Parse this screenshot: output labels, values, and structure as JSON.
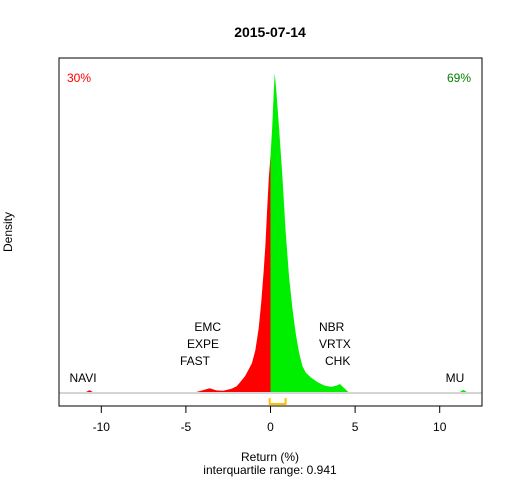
{
  "chart_data": {
    "type": "area",
    "title": "2015-07-14",
    "xlabel": "Return (%)",
    "ylabel": "Density",
    "subtitle": "interquartile range: 0.941",
    "xlim": [
      -12.5,
      12.5
    ],
    "ylim": [
      0,
      1.0
    ],
    "x_ticks": [
      -10,
      -5,
      0,
      5,
      10
    ],
    "tick_labels": [
      "-10",
      "-5",
      "0",
      "5",
      "10"
    ],
    "series": [
      {
        "color": "#ff0000",
        "points": [
          [
            -10.9,
            0.0
          ],
          [
            -10.7,
            0.006
          ],
          [
            -10.5,
            0.0
          ],
          [
            -4.4,
            0.0
          ],
          [
            -4.1,
            0.004
          ],
          [
            -3.6,
            0.012
          ],
          [
            -3.2,
            0.005
          ],
          [
            -2.8,
            0.004
          ],
          [
            -2.3,
            0.01
          ],
          [
            -2.0,
            0.018
          ],
          [
            -1.8,
            0.03
          ],
          [
            -1.5,
            0.05
          ],
          [
            -1.3,
            0.07
          ],
          [
            -1.1,
            0.09
          ],
          [
            -0.9,
            0.13
          ],
          [
            -0.7,
            0.2
          ],
          [
            -0.55,
            0.28
          ],
          [
            -0.4,
            0.38
          ],
          [
            -0.3,
            0.46
          ],
          [
            -0.2,
            0.57
          ],
          [
            -0.1,
            0.67
          ],
          [
            0.0,
            0.74
          ]
        ]
      },
      {
        "color": "#00ee00",
        "points": [
          [
            0.0,
            0.74
          ],
          [
            0.1,
            0.83
          ],
          [
            0.2,
            0.95
          ],
          [
            0.25,
            1.0
          ],
          [
            0.35,
            0.94
          ],
          [
            0.5,
            0.83
          ],
          [
            0.7,
            0.68
          ],
          [
            0.9,
            0.5
          ],
          [
            1.1,
            0.36
          ],
          [
            1.3,
            0.26
          ],
          [
            1.5,
            0.18
          ],
          [
            1.7,
            0.12
          ],
          [
            1.9,
            0.08
          ],
          [
            2.1,
            0.06
          ],
          [
            2.4,
            0.045
          ],
          [
            2.8,
            0.03
          ],
          [
            3.2,
            0.02
          ],
          [
            3.6,
            0.016
          ],
          [
            3.9,
            0.02
          ],
          [
            4.1,
            0.025
          ],
          [
            4.3,
            0.015
          ],
          [
            4.6,
            0.0
          ],
          [
            11.2,
            0.0
          ],
          [
            11.4,
            0.007
          ],
          [
            11.6,
            0.0
          ]
        ]
      }
    ],
    "annotations": {
      "neg_pct": {
        "text": "30%",
        "color": "#ff0000"
      },
      "pos_pct": {
        "text": "69%",
        "color": "#008000"
      },
      "tickers": [
        {
          "text": "EMC",
          "anchor": "end"
        },
        {
          "text": "EXPE",
          "anchor": "end"
        },
        {
          "text": "FAST",
          "anchor": "end"
        },
        {
          "text": "NBR",
          "anchor": "start"
        },
        {
          "text": "VRTX",
          "anchor": "start"
        },
        {
          "text": "CHK",
          "anchor": "start"
        },
        {
          "text": "NAVI",
          "anchor": "middle"
        },
        {
          "text": "MU",
          "anchor": "middle"
        }
      ]
    },
    "interquartile_range": {
      "low": -0.05,
      "high": 0.891,
      "color": "#ffc000"
    },
    "zero_line": true,
    "grid": false
  }
}
